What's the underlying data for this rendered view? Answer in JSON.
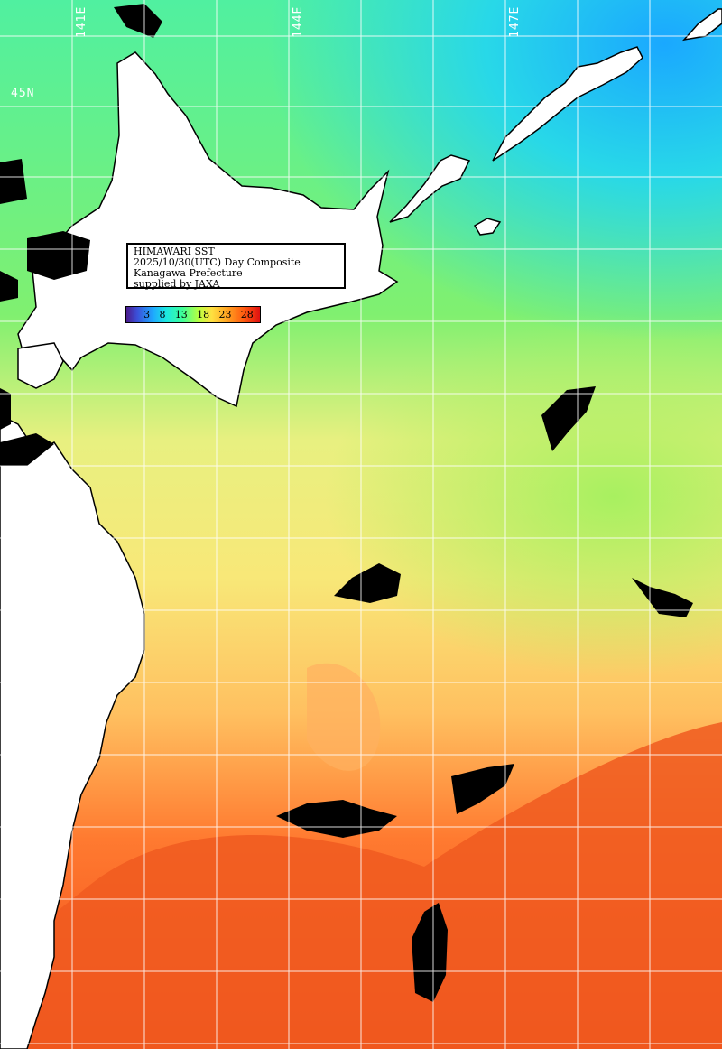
{
  "map": {
    "lon_labels": [
      "141E",
      "144E",
      "147E"
    ],
    "lat_labels": [
      "45N"
    ],
    "info_lines": [
      "HIMAWARI SST",
      "2025/10/30(UTC) Day Composite",
      "Kanagawa Prefecture",
      "supplied by JAXA"
    ],
    "scale_ticks": [
      "3",
      "8",
      "13",
      "18",
      "23",
      "28"
    ],
    "colors": {
      "land": "#ffffff",
      "cloud": "#000000",
      "grid": "#ffffff",
      "cold": "#30c8ff",
      "cool": "#3cf0a0",
      "mild": "#90ff60",
      "warm": "#f8e870",
      "hot": "#ffa040",
      "hottest": "#f05018"
    }
  }
}
